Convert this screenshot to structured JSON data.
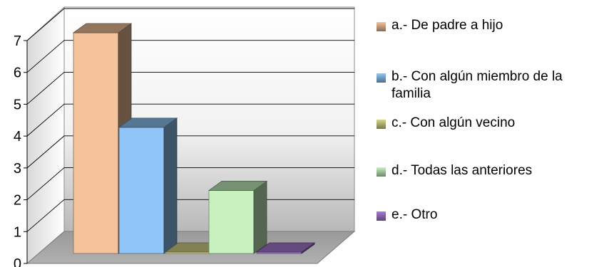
{
  "chart_data": {
    "type": "bar",
    "style": "3d-clustered-column",
    "categories": [
      "a.- De padre a hijo",
      "b.- Con algún miembro de la familia",
      "c.- Con algún vecino",
      "d.- Todas las anteriores",
      "e.- Otro"
    ],
    "values": [
      7,
      4,
      0,
      2,
      0
    ],
    "colors": [
      "#f5c39b",
      "#8fc6f7",
      "#d7d78a",
      "#c7f2c0",
      "#a97bd6"
    ],
    "y_ticks": [
      "0",
      "1",
      "2",
      "3",
      "4",
      "5",
      "6",
      "7"
    ],
    "ylim": [
      0,
      7
    ],
    "grid": true,
    "legend_position": "right"
  }
}
